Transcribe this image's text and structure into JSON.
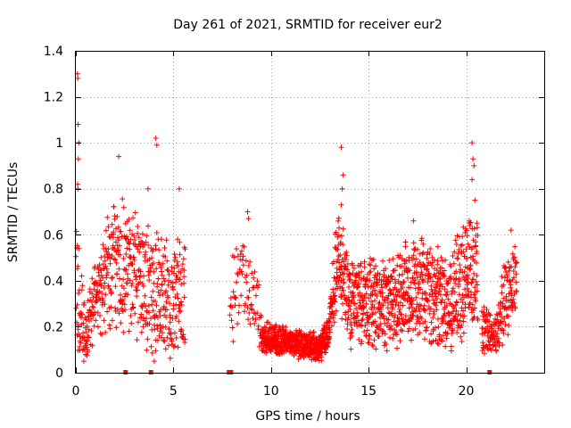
{
  "chart_data": {
    "type": "scatter",
    "title": "Day 261 of 2021, SRMTID for receiver eur2",
    "xlabel": "GPS time / hours",
    "ylabel": "SRMTID / TECUs",
    "xlim": [
      0,
      24
    ],
    "ylim": [
      0,
      1.4
    ],
    "xticks": [
      0,
      5,
      10,
      15,
      20
    ],
    "xtick_labels": [
      "0",
      "5",
      "10",
      "15",
      "20"
    ],
    "yticks": [
      0,
      0.2,
      0.4,
      0.6,
      0.8,
      1,
      1.2,
      1.4
    ],
    "ytick_labels": [
      "0",
      "0.2",
      "0.4",
      "0.6",
      "0.8",
      "1",
      "1.2",
      "1.4"
    ],
    "grid": true,
    "marker": "+",
    "color": "#ff0000",
    "series": [
      {
        "name": "SRMTID",
        "segments": [
          {
            "t_start": 0.0,
            "t_end": 5.6,
            "step": 0.01,
            "profile": [
              [
                0.0,
                0.5,
                0.35
              ],
              [
                0.15,
                0.25,
                0.3
              ],
              [
                0.5,
                0.18,
                0.15
              ],
              [
                1.0,
                0.33,
                0.18
              ],
              [
                2.0,
                0.48,
                0.28
              ],
              [
                3.5,
                0.38,
                0.3
              ],
              [
                5.0,
                0.3,
                0.25
              ],
              [
                5.6,
                0.35,
                0.3
              ]
            ]
          },
          {
            "t_start": 7.9,
            "t_end": 9.5,
            "step": 0.02,
            "profile": [
              [
                7.9,
                0.28,
                0.18
              ],
              [
                8.6,
                0.4,
                0.22
              ],
              [
                9.5,
                0.24,
                0.14
              ]
            ]
          },
          {
            "t_start": 9.5,
            "t_end": 13.0,
            "step": 0.006,
            "profile": [
              [
                9.5,
                0.16,
                0.07
              ],
              [
                11.0,
                0.13,
                0.06
              ],
              [
                12.5,
                0.11,
                0.06
              ],
              [
                13.0,
                0.18,
                0.08
              ]
            ]
          },
          {
            "t_start": 13.0,
            "t_end": 20.6,
            "step": 0.008,
            "profile": [
              [
                13.0,
                0.26,
                0.15
              ],
              [
                13.5,
                0.5,
                0.25
              ],
              [
                14.0,
                0.3,
                0.18
              ],
              [
                16.0,
                0.3,
                0.2
              ],
              [
                17.5,
                0.38,
                0.22
              ],
              [
                19.0,
                0.3,
                0.2
              ],
              [
                20.0,
                0.4,
                0.26
              ],
              [
                20.6,
                0.45,
                0.3
              ]
            ]
          },
          {
            "t_start": 20.8,
            "t_end": 22.6,
            "step": 0.01,
            "profile": [
              [
                20.8,
                0.2,
                0.12
              ],
              [
                21.5,
                0.16,
                0.08
              ],
              [
                22.0,
                0.32,
                0.2
              ],
              [
                22.6,
                0.38,
                0.22
              ]
            ]
          }
        ],
        "peaks": [
          {
            "x": 0.08,
            "y": 1.3
          },
          {
            "x": 0.1,
            "y": 1.28
          },
          {
            "x": 0.12,
            "y": 1.08
          },
          {
            "x": 0.15,
            "y": 1.0
          },
          {
            "x": 0.13,
            "y": 0.93
          },
          {
            "x": 0.09,
            "y": 0.82
          },
          {
            "x": 0.11,
            "y": 0.8
          },
          {
            "x": 2.2,
            "y": 0.94
          },
          {
            "x": 3.7,
            "y": 0.8
          },
          {
            "x": 4.1,
            "y": 1.02
          },
          {
            "x": 4.15,
            "y": 0.99
          },
          {
            "x": 5.3,
            "y": 0.8
          },
          {
            "x": 8.8,
            "y": 0.7
          },
          {
            "x": 8.85,
            "y": 0.67
          },
          {
            "x": 13.6,
            "y": 0.98
          },
          {
            "x": 13.7,
            "y": 0.86
          },
          {
            "x": 13.65,
            "y": 0.8
          },
          {
            "x": 13.6,
            "y": 0.73
          },
          {
            "x": 17.3,
            "y": 0.66
          },
          {
            "x": 20.3,
            "y": 1.0
          },
          {
            "x": 20.35,
            "y": 0.93
          },
          {
            "x": 20.4,
            "y": 0.9
          },
          {
            "x": 20.3,
            "y": 0.84
          },
          {
            "x": 20.45,
            "y": 0.75
          },
          {
            "x": 22.3,
            "y": 0.62
          }
        ],
        "zero_markers": [
          2.55,
          3.85,
          7.85,
          7.95,
          21.2
        ]
      }
    ]
  }
}
